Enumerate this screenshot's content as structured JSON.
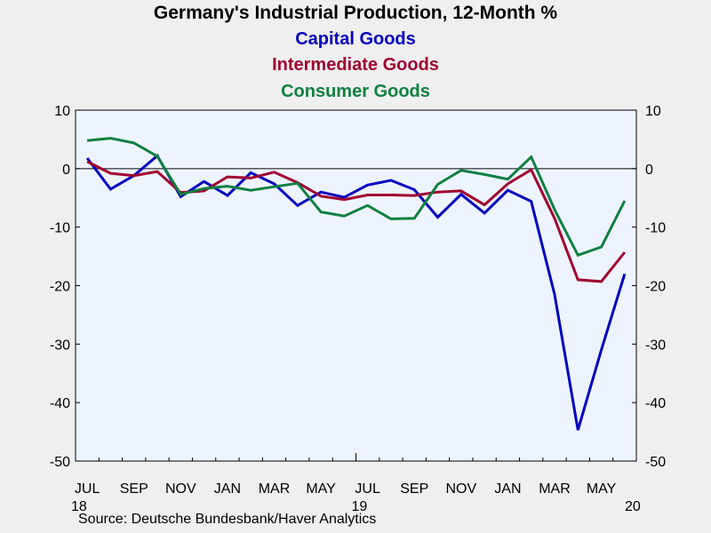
{
  "colors": {
    "background": "#efefef",
    "plot_background": "#eef4ff",
    "capital": "#0000c0",
    "intermediate": "#a00030",
    "consumer": "#108040"
  },
  "chart_data": {
    "type": "line",
    "title": "Germany's Industrial Production, 12-Month %",
    "subtitles": [
      "Capital Goods",
      "Intermediate Goods",
      "Consumer Goods"
    ],
    "source": "Source:  Deutsche Bundesbank/Haver Analytics",
    "x_dates": [
      "2018-07",
      "2018-08",
      "2018-09",
      "2018-10",
      "2018-11",
      "2018-12",
      "2019-01",
      "2019-02",
      "2019-03",
      "2019-04",
      "2019-05",
      "2019-06",
      "2019-07",
      "2019-08",
      "2019-09",
      "2019-10",
      "2019-11",
      "2019-12",
      "2020-01",
      "2020-02",
      "2020-03",
      "2020-04",
      "2020-05",
      "2020-06"
    ],
    "x_tick_labels": [
      "JUL",
      "SEP",
      "NOV",
      "JAN",
      "MAR",
      "MAY",
      "JUL",
      "SEP",
      "NOV",
      "JAN",
      "MAR",
      "MAY"
    ],
    "x_year_labels": [
      "18",
      "19",
      "20"
    ],
    "ylim": [
      -50,
      10
    ],
    "y_ticks": [
      10,
      0,
      -10,
      -20,
      -30,
      -40,
      -50
    ],
    "zero_line": true,
    "grid": false,
    "series": [
      {
        "name": "Capital Goods",
        "color_key": "capital",
        "values": [
          1.8,
          -3.5,
          -1.2,
          2.2,
          -4.8,
          -2.2,
          -4.6,
          -0.7,
          -2.6,
          -6.3,
          -4.0,
          -4.9,
          -2.8,
          -2.0,
          -3.6,
          -8.3,
          -4.4,
          -7.6,
          -3.7,
          -5.6,
          -21.5,
          -44.7,
          -31.0,
          -18.0
        ]
      },
      {
        "name": "Intermediate Goods",
        "color_key": "intermediate",
        "values": [
          1.2,
          -0.8,
          -1.2,
          -0.5,
          -4.1,
          -3.8,
          -1.4,
          -1.6,
          -0.6,
          -2.4,
          -4.7,
          -5.3,
          -4.5,
          -4.5,
          -4.6,
          -4.0,
          -3.8,
          -6.2,
          -2.6,
          -0.2,
          -8.5,
          -19.0,
          -19.3,
          -14.3
        ]
      },
      {
        "name": "Consumer Goods",
        "color_key": "consumer",
        "values": [
          4.8,
          5.2,
          4.4,
          2.1,
          -4.4,
          -3.4,
          -3.0,
          -3.7,
          -3.1,
          -2.5,
          -7.4,
          -8.1,
          -6.3,
          -8.6,
          -8.5,
          -2.7,
          -0.3,
          -1.0,
          -1.8,
          2.0,
          -7.0,
          -14.8,
          -13.4,
          -5.5
        ]
      }
    ]
  }
}
